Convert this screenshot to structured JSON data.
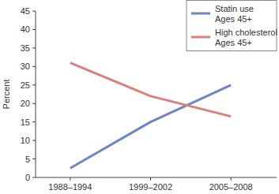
{
  "chart_data": {
    "type": "line",
    "y_label": "Percent",
    "categories": [
      "1988–1994",
      "1999–2002",
      "2005–2008"
    ],
    "series": [
      {
        "name": "Statin use Ages 45+",
        "color": "#6f84c6",
        "values": [
          2.5,
          15,
          25
        ]
      },
      {
        "name": "High cholesterol Ages 45+",
        "color": "#dc7f7c",
        "values": [
          31,
          22,
          16.5
        ]
      }
    ],
    "ylim": [
      0,
      45
    ],
    "yticks": [
      0,
      5,
      10,
      15,
      20,
      25,
      30,
      35,
      40,
      45
    ],
    "grid": false,
    "legend": "top-right"
  }
}
